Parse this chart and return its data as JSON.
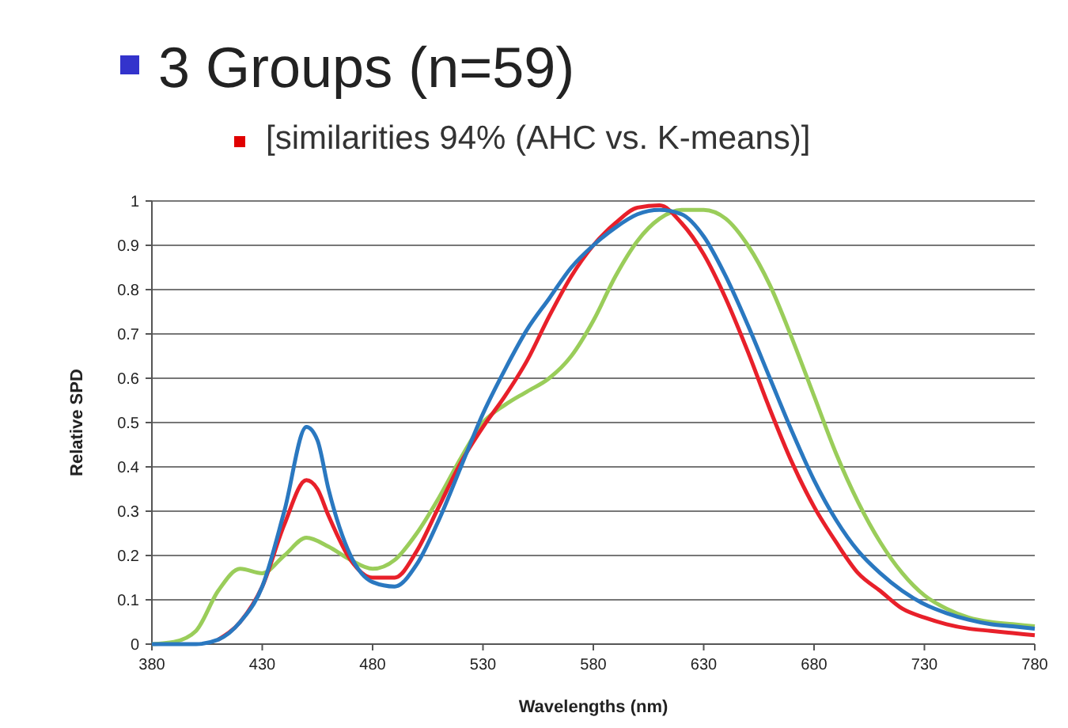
{
  "chart_data": {
    "type": "line",
    "title": "3 Groups (n=59)",
    "subtitle": "[similarities 94% (AHC vs. K-means)]",
    "xlabel": "Wavelengths (nm)",
    "ylabel": "Relative SPD",
    "xlim": [
      380,
      780
    ],
    "xticks": [
      380,
      430,
      480,
      530,
      580,
      630,
      680,
      730,
      780
    ],
    "ylim": [
      0,
      1
    ],
    "yticks": [
      0,
      0.1,
      0.2,
      0.3,
      0.4,
      0.5,
      0.6,
      0.7,
      0.8,
      0.9,
      1
    ],
    "grid": "y",
    "marker": "none",
    "line_style": "solid",
    "series": [
      {
        "color": "#9acd5a",
        "x": [
          380,
          390,
          400,
          410,
          420,
          430,
          440,
          450,
          460,
          470,
          480,
          490,
          500,
          510,
          520,
          530,
          540,
          550,
          560,
          570,
          580,
          590,
          600,
          610,
          620,
          630,
          640,
          650,
          660,
          670,
          680,
          690,
          700,
          710,
          720,
          730,
          740,
          750,
          760,
          770,
          780
        ],
        "values": [
          0,
          0.005,
          0.03,
          0.12,
          0.17,
          0.16,
          0.2,
          0.24,
          0.22,
          0.19,
          0.17,
          0.19,
          0.25,
          0.33,
          0.42,
          0.5,
          0.54,
          0.57,
          0.6,
          0.65,
          0.73,
          0.83,
          0.91,
          0.96,
          0.98,
          0.98,
          0.96,
          0.9,
          0.81,
          0.69,
          0.56,
          0.43,
          0.32,
          0.23,
          0.16,
          0.11,
          0.08,
          0.06,
          0.05,
          0.045,
          0.04
        ]
      },
      {
        "color": "#e8202a",
        "x": [
          410,
          420,
          430,
          440,
          450,
          455,
          460,
          470,
          480,
          490,
          500,
          510,
          520,
          530,
          540,
          550,
          560,
          570,
          580,
          590,
          600,
          610,
          620,
          630,
          640,
          650,
          660,
          670,
          680,
          690,
          700,
          710,
          720,
          730,
          740,
          750,
          760,
          770,
          780
        ],
        "values": [
          0.01,
          0.05,
          0.13,
          0.27,
          0.37,
          0.35,
          0.29,
          0.19,
          0.15,
          0.15,
          0.21,
          0.31,
          0.41,
          0.49,
          0.56,
          0.64,
          0.74,
          0.83,
          0.9,
          0.95,
          0.985,
          0.99,
          0.95,
          0.88,
          0.78,
          0.66,
          0.53,
          0.41,
          0.31,
          0.23,
          0.16,
          0.12,
          0.08,
          0.06,
          0.045,
          0.035,
          0.03,
          0.025,
          0.02
        ]
      },
      {
        "color": "#2a78c0",
        "x": [
          380,
          390,
          400,
          410,
          420,
          430,
          440,
          450,
          455,
          460,
          470,
          480,
          490,
          500,
          510,
          520,
          530,
          540,
          550,
          560,
          570,
          580,
          590,
          600,
          610,
          620,
          630,
          640,
          650,
          660,
          670,
          680,
          690,
          700,
          710,
          720,
          730,
          740,
          750,
          760,
          770,
          780
        ],
        "values": [
          0,
          0,
          0,
          0.01,
          0.05,
          0.13,
          0.3,
          0.49,
          0.46,
          0.35,
          0.2,
          0.14,
          0.13,
          0.18,
          0.28,
          0.4,
          0.52,
          0.62,
          0.71,
          0.78,
          0.85,
          0.9,
          0.94,
          0.97,
          0.98,
          0.97,
          0.92,
          0.83,
          0.72,
          0.6,
          0.48,
          0.37,
          0.28,
          0.21,
          0.16,
          0.12,
          0.09,
          0.07,
          0.055,
          0.045,
          0.04,
          0.035
        ]
      }
    ]
  }
}
